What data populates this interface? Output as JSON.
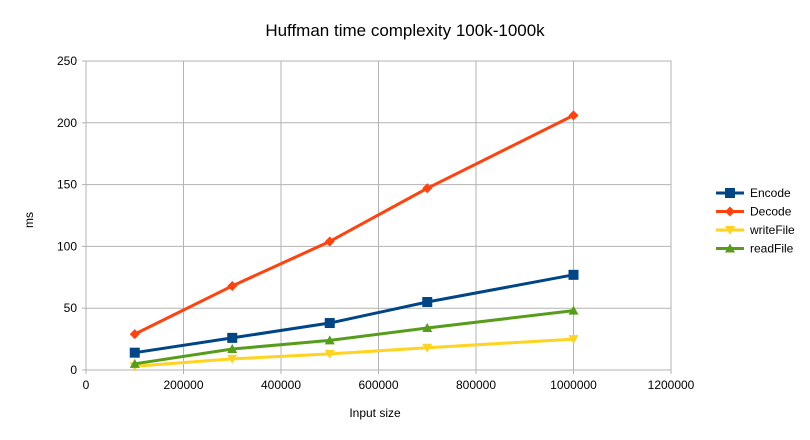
{
  "chart_data": {
    "type": "line",
    "title": "Huffman time complexity 100k-1000k",
    "xlabel": "Input size",
    "ylabel": "ms",
    "xlim": [
      0,
      1200000
    ],
    "ylim": [
      0,
      250
    ],
    "xticks": [
      0,
      200000,
      400000,
      600000,
      800000,
      1000000,
      1200000
    ],
    "yticks": [
      0,
      50,
      100,
      150,
      200,
      250
    ],
    "grid": true,
    "legend_position": "right",
    "x": [
      100000,
      300000,
      500000,
      700000,
      1000000
    ],
    "series": [
      {
        "name": "Encode",
        "values": [
          14,
          26,
          38,
          55,
          77
        ],
        "color": "#004586",
        "marker": "square"
      },
      {
        "name": "Decode",
        "values": [
          29,
          68,
          104,
          147,
          206
        ],
        "color": "#ff420e",
        "marker": "diamond"
      },
      {
        "name": "writeFile",
        "values": [
          3,
          9,
          13,
          18,
          25
        ],
        "color": "#ffd320",
        "marker": "triangle-down"
      },
      {
        "name": "readFile",
        "values": [
          5,
          17,
          24,
          34,
          48
        ],
        "color": "#579d1c",
        "marker": "triangle-up"
      }
    ]
  }
}
